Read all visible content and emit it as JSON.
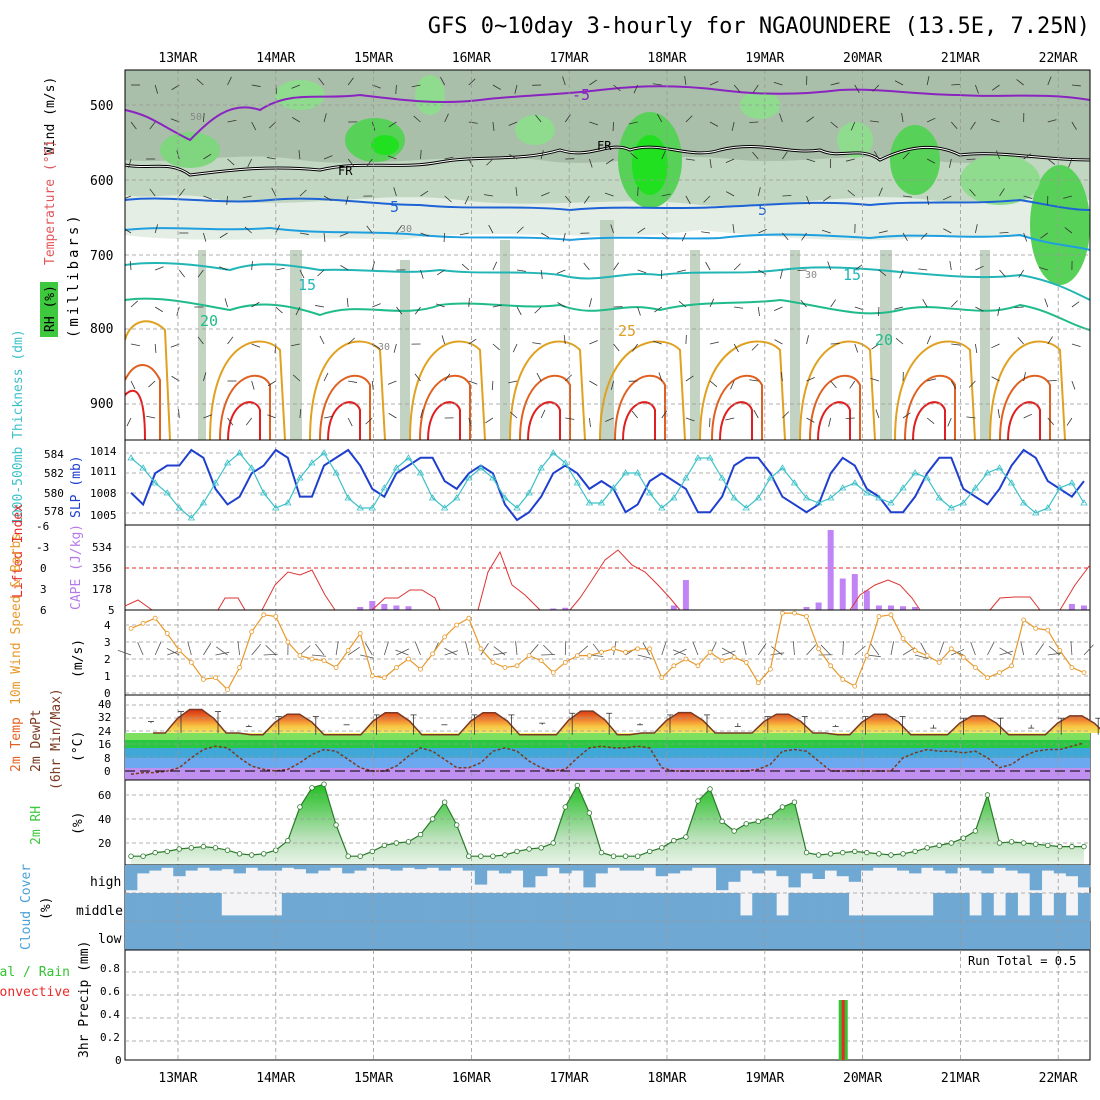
{
  "title": "GFS 0~10day 3-hourly for NGAOUNDERE (13.5E, 7.25N)",
  "dates": [
    "13MAR",
    "14MAR",
    "15MAR",
    "16MAR",
    "17MAR",
    "18MAR",
    "19MAR",
    "20MAR",
    "21MAR",
    "22MAR"
  ],
  "panels": {
    "upper_air": {
      "ylabel_wind": "Wind (m/s)",
      "ylabel_temp": "Temperature (°C)",
      "ylabel_p": "(millibars)",
      "rh_label": "RH (%)",
      "yticks": [
        500,
        600,
        700,
        800,
        900
      ],
      "contour_labels": [
        "-5",
        "FR",
        "FR",
        "5",
        "5",
        "15",
        "15",
        "20",
        "20",
        "25"
      ],
      "rh_labels": [
        "50",
        "30",
        "30",
        "30"
      ]
    },
    "thickness": {
      "ylabel_left": "1000-500mb Thickness (dm)",
      "ylabel_right": "SLP (mb)",
      "left_ticks": [
        "584",
        "582",
        "580",
        "578"
      ],
      "right_ticks": [
        "1014",
        "1011",
        "1008",
        "1005"
      ]
    },
    "cape": {
      "ylabel_left": "Lifted Index",
      "ylabel_right": "CAPE (J/kg)",
      "left_ticks": [
        "-6",
        "-3",
        "0",
        "3",
        "6"
      ],
      "right_ticks": [
        "534",
        "356",
        "178",
        "5"
      ]
    },
    "wind10": {
      "ylabel": "10m Wind Speed & Barbs",
      "unit": "(m/s)",
      "yticks": [
        "0",
        "1",
        "2",
        "3",
        "4"
      ]
    },
    "temp2m": {
      "ylabel1": "2m Temp",
      "ylabel2": "2m DewPt",
      "ylabel3": "(6hr Min/Max)",
      "unit": "(°C)",
      "yticks": [
        "0",
        "8",
        "16",
        "24",
        "32",
        "40"
      ]
    },
    "rh2m": {
      "ylabel": "2m RH",
      "unit": "(%)",
      "yticks": [
        "20",
        "40",
        "60"
      ]
    },
    "cloud": {
      "ylabel": "Cloud Cover",
      "unit": "(%)",
      "levels": [
        "high",
        "middle",
        "low"
      ]
    },
    "precip": {
      "ylabel1": "Total / Rain",
      "ylabel2": "Convective",
      "ylabel3": "3hr Precip (mm)",
      "yticks": [
        "0",
        "0.2",
        "0.4",
        "0.6",
        "0.8"
      ],
      "run_total": "Run Total = 0.5"
    }
  },
  "chart_data": [
    {
      "type": "line",
      "title": "1000-500mb Thickness (dm) / SLP (mb)",
      "series": [
        {
          "name": "SLP (mb)",
          "color": "#1f3fcf",
          "values": [
            1008.5,
            1007,
            1011,
            1012,
            1012,
            1014,
            1013,
            1009,
            1007,
            1008,
            1011,
            1012,
            1014,
            1013,
            1008,
            1008,
            1012,
            1013,
            1014,
            1012,
            1009,
            1008,
            1011,
            1012,
            1013,
            1013,
            1010,
            1009,
            1011,
            1012,
            1011,
            1007,
            1005,
            1006,
            1008,
            1011,
            1012,
            1011,
            1009,
            1010,
            1009,
            1006,
            1007,
            1010,
            1011,
            1010,
            1009,
            1006,
            1006,
            1008,
            1012,
            1013,
            1013,
            1011,
            1008,
            1007,
            1006,
            1007,
            1011,
            1013,
            1012,
            1009,
            1008,
            1006,
            1006,
            1008,
            1011,
            1013,
            1013,
            1009,
            1008,
            1007,
            1009,
            1012,
            1014,
            1013,
            1010,
            1009,
            1008,
            1010
          ]
        },
        {
          "name": "1000-500mb Thickness (dm)",
          "color": "#3cc0c8",
          "values": [
            583.5,
            582.5,
            581,
            580,
            578.5,
            577.5,
            579,
            581,
            583,
            584,
            582.5,
            580,
            578.5,
            579,
            581.5,
            583,
            584,
            582,
            579.5,
            578.5,
            578.5,
            580.5,
            582.5,
            583.5,
            582,
            579.5,
            578.5,
            579.5,
            581.5,
            582.5,
            581.5,
            579.5,
            578.5,
            580,
            582.5,
            584,
            583,
            581,
            579,
            579,
            580.5,
            582,
            582,
            580,
            578.5,
            579.5,
            581.5,
            583.5,
            583.5,
            581.5,
            579.5,
            578.5,
            579.5,
            581.5,
            582.5,
            581,
            579.5,
            579,
            579.5,
            580.5,
            581,
            580,
            579.5,
            579,
            580.5,
            582,
            581.5,
            579.5,
            578.5,
            579,
            580.5,
            582,
            582.5,
            581,
            579,
            578,
            578.5,
            580.5,
            581,
            579
          ]
        }
      ]
    },
    {
      "type": "bar",
      "title": "Lifted Index / CAPE (J/kg)",
      "series": [
        {
          "name": "CAPE (J/kg)",
          "color": "#c084f5",
          "indices": [
            19,
            20,
            21,
            22,
            23,
            35,
            36,
            45,
            46,
            56,
            57,
            58,
            59,
            60,
            61,
            62,
            63,
            64,
            65,
            78,
            79
          ],
          "values": [
            20,
            60,
            40,
            30,
            25,
            10,
            15,
            30,
            200,
            20,
            50,
            534,
            210,
            240,
            130,
            30,
            30,
            25,
            20,
            40,
            30
          ]
        }
      ]
    },
    {
      "type": "line",
      "title": "10m Wind Speed (m/s)",
      "series": [
        {
          "name": "10m Wind Speed",
          "color": "#e8982a",
          "values": [
            3.8,
            4.1,
            4.4,
            3.5,
            2.5,
            1.8,
            0.8,
            0.9,
            0.2,
            1.5,
            3.6,
            4.6,
            4.5,
            3.0,
            2.2,
            2.0,
            1.9,
            1.5,
            2.5,
            3.5,
            1.0,
            0.9,
            1.5,
            2.0,
            1.4,
            2.3,
            3.3,
            4.0,
            4.4,
            2.6,
            1.8,
            1.5,
            1.6,
            2.2,
            1.9,
            1.2,
            1.8,
            2.2,
            2.2,
            2.4,
            2.6,
            2.4,
            2.6,
            2.6,
            0.9,
            1.6,
            2.0,
            1.6,
            2.4,
            1.9,
            2.1,
            1.8,
            0.6,
            1.4,
            4.7,
            4.7,
            4.5,
            2.6,
            1.6,
            0.8,
            0.4,
            2.2,
            4.5,
            4.6,
            3.2,
            2.5,
            2.2,
            1.8,
            2.6,
            2.1,
            1.5,
            0.9,
            1.2,
            1.6,
            4.3,
            3.8,
            3.7,
            2.5,
            1.5,
            1.2
          ]
        }
      ]
    },
    {
      "type": "area",
      "title": "2m Temp / 2m DewPt (°C)",
      "series": [
        {
          "name": "2m Temp",
          "color": "#7a3b22",
          "daily_max": [
            38,
            35,
            36,
            36,
            37,
            36,
            35,
            35,
            34,
            34
          ],
          "daily_min": [
            23,
            22,
            22,
            22,
            22,
            23,
            23,
            22,
            22,
            22
          ]
        },
        {
          "name": "2m DewPt",
          "color": "#7a3b22",
          "values": [
            -2,
            -1,
            -1,
            0,
            2,
            8,
            13,
            15,
            14,
            8,
            3,
            1,
            0,
            1,
            5,
            10,
            13,
            12,
            7,
            2,
            0,
            0,
            3,
            9,
            14,
            12,
            7,
            2,
            2,
            5,
            12,
            14,
            12,
            6,
            2,
            0,
            1,
            8,
            14,
            15,
            14,
            14,
            15,
            14,
            2,
            0,
            0,
            0,
            0,
            0,
            0,
            0,
            1,
            4,
            12,
            13,
            12,
            6,
            0,
            0,
            0,
            0,
            0,
            0,
            8,
            11,
            13,
            12,
            12,
            11,
            12,
            8,
            2,
            4,
            9,
            12,
            13,
            13,
            15,
            17
          ]
        }
      ]
    },
    {
      "type": "area",
      "title": "2m RH (%)",
      "series": [
        {
          "name": "2m RH",
          "color": "#3ec83e",
          "values": [
            9,
            9,
            12,
            13,
            15,
            16,
            17,
            16,
            14,
            11,
            10,
            11,
            14,
            22,
            50,
            66,
            69,
            35,
            9,
            9,
            13,
            18,
            20,
            21,
            27,
            40,
            54,
            35,
            9,
            9,
            9,
            10,
            13,
            15,
            16,
            20,
            50,
            68,
            45,
            12,
            9,
            9,
            9,
            13,
            16,
            22,
            25,
            55,
            65,
            38,
            30,
            36,
            38,
            42,
            50,
            54,
            12,
            10,
            11,
            12,
            13,
            12,
            11,
            10,
            11,
            13,
            16,
            18,
            20,
            24,
            30,
            60,
            20,
            21,
            20,
            19,
            18,
            17,
            17,
            17
          ]
        }
      ]
    },
    {
      "type": "bar",
      "title": "Cloud Cover (%)",
      "series": [
        {
          "name": "high",
          "color": "#6fa8d3"
        },
        {
          "name": "middle",
          "color": "#6fa8d3"
        },
        {
          "name": "low",
          "color": "#6fa8d3"
        }
      ]
    },
    {
      "type": "bar",
      "title": "3hr Precip (mm)",
      "series": [
        {
          "name": "Total / Rain",
          "color": "#33c433",
          "index": 59,
          "values": [
            0.5
          ]
        },
        {
          "name": "Convective",
          "color": "#e82a2a",
          "index": 59,
          "values": [
            0.5
          ]
        }
      ],
      "ylim": [
        0,
        0.9
      ]
    }
  ]
}
